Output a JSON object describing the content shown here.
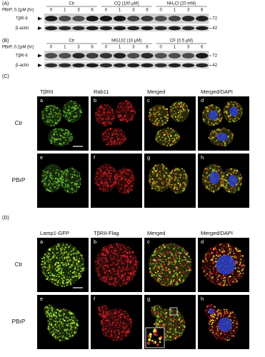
{
  "blot_a": {
    "label": "(A)",
    "treatment": "PBrP, 0.2μM (hr)",
    "groups": [
      "Ctr",
      "CQ (100 μM)",
      "NH₄Cl (20 mM)"
    ],
    "timepoints": [
      "0",
      "1",
      "3",
      "6",
      "0",
      "1",
      "3",
      "6",
      "0",
      "1",
      "3",
      "6"
    ],
    "bands": [
      {
        "name": "TβR-II",
        "marker": "72"
      },
      {
        "name": "β-actin",
        "marker": "42"
      }
    ]
  },
  "blot_b": {
    "label": "(B)",
    "treatment": "PBrP, 0.2μM (hr)",
    "groups": [
      "Ctr",
      "MG132 (10 μM)",
      "CF (0.5 μM)"
    ],
    "timepoints": [
      "0",
      "1",
      "3",
      "6",
      "0",
      "1",
      "3",
      "6",
      "0",
      "1",
      "3",
      "6"
    ],
    "bands": [
      {
        "name": "TβR-II",
        "marker": "72"
      },
      {
        "name": "β-actin",
        "marker": "42"
      }
    ]
  },
  "panel_c": {
    "label": "(C)",
    "columns": [
      "TβRII",
      "Rab11",
      "Merged",
      "Merged/DAPI"
    ],
    "rows": [
      "Ctr",
      "PBrP"
    ],
    "letters": [
      "a",
      "b",
      "c",
      "d",
      "e",
      "f",
      "g",
      "h"
    ]
  },
  "panel_d": {
    "label": "(D)",
    "columns": [
      "Lamp1-GFP",
      "TβRII-Flag",
      "Merged",
      "Merged/DAPI"
    ],
    "rows": [
      "Ctr",
      "PBrP"
    ],
    "letters": [
      "a",
      "b",
      "c",
      "d",
      "e",
      "f",
      "g",
      "h"
    ]
  }
}
